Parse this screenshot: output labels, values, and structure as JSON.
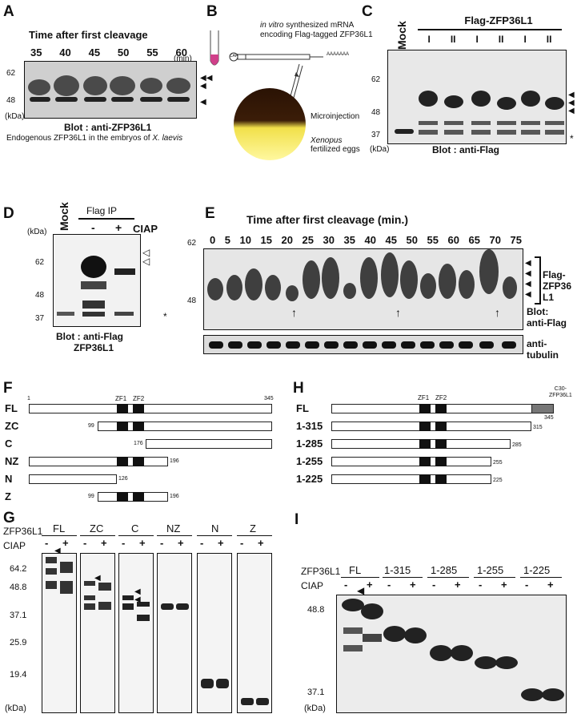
{
  "panelA": {
    "label": "A",
    "title": "Time after first cleavage",
    "times": [
      "35",
      "40",
      "45",
      "50",
      "55",
      "60"
    ],
    "unit": "(min)",
    "mw": [
      "62",
      "48"
    ],
    "kda": "(kDa)",
    "blot": "Blot : anti-ZFP36L1",
    "caption_pre": "Endogenous ZFP36L1 in the embryos of ",
    "caption_species": "X. laevis"
  },
  "panelB": {
    "label": "B",
    "mrna_italic": "in vitro",
    "mrna_rest": " synthesized mRNA",
    "mrna_line2": "encoding Flag-tagged ZFP36L1",
    "cap": "CAP",
    "polya": "AAAAAAA",
    "micro": "Microinjection",
    "eggs_italic": "Xenopus",
    "eggs_line2": "fertilized eggs"
  },
  "panelC": {
    "label": "C",
    "mock": "Mock",
    "header": "Flag-ZFP36L1",
    "lanes": [
      "I",
      "II",
      "I",
      "II",
      "I",
      "II"
    ],
    "mw": [
      "62",
      "48",
      "37"
    ],
    "kda": "(kDa)",
    "blot": "Blot : anti-Flag",
    "star": "*"
  },
  "panelD": {
    "label": "D",
    "mock": "Mock",
    "header": "Flag IP",
    "minus": "-",
    "plus": "+",
    "ciap": "CIAP",
    "kda": "(kDa)",
    "mw": [
      "62",
      "48",
      "37"
    ],
    "blot_line1": "Blot : anti-Flag",
    "blot_line2": "ZFP36L1",
    "star": "*"
  },
  "panelE": {
    "label": "E",
    "title": "Time after first cleavage (min.)",
    "times": [
      "0",
      "5",
      "10",
      "15",
      "20",
      "25",
      "30",
      "35",
      "40",
      "45",
      "50",
      "55",
      "60",
      "65",
      "70",
      "75"
    ],
    "mw": [
      "62",
      "48"
    ],
    "flag_line1": "Flag-",
    "flag_line2": "ZFP36",
    "flag_line3": "L1",
    "blot_line1": "Blot:",
    "blot_line2": "anti-Flag",
    "tub_line1": "anti-",
    "tub_line2": "tubulin"
  },
  "panelF": {
    "label": "F",
    "rows": [
      {
        "name": "FL",
        "start": "1",
        "end": "345"
      },
      {
        "name": "ZC",
        "start": "99",
        "end": ""
      },
      {
        "name": "C",
        "start": "176",
        "end": ""
      },
      {
        "name": "NZ",
        "start": "",
        "end": "196"
      },
      {
        "name": "N",
        "start": "",
        "end": "126"
      },
      {
        "name": "Z",
        "start": "99",
        "end": "196"
      }
    ],
    "zf1": "ZF1",
    "zf2": "ZF2"
  },
  "panelH": {
    "label": "H",
    "rows": [
      {
        "name": "FL",
        "end": "345"
      },
      {
        "name": "1-315",
        "end": "315"
      },
      {
        "name": "1-285",
        "end": "285"
      },
      {
        "name": "1-255",
        "end": "255"
      },
      {
        "name": "1-225",
        "end": "225"
      }
    ],
    "zf1": "ZF1",
    "zf2": "ZF2",
    "c30_line1": "C30-",
    "c30_line2": "ZFP36L1"
  },
  "panelG": {
    "label": "G",
    "row1": "ZFP36L1",
    "row2": "CIAP",
    "groups": [
      "FL",
      "ZC",
      "C",
      "NZ",
      "N",
      "Z"
    ],
    "minus": "-",
    "plus": "+",
    "mw": [
      "64.2",
      "48.8",
      "37.1",
      "25.9",
      "19.4"
    ],
    "kda": "(kDa)"
  },
  "panelI": {
    "label": "I",
    "row1": "ZFP36L1",
    "row2": "CIAP",
    "groups": [
      "FL",
      "1-315",
      "1-285",
      "1-255",
      "1-225"
    ],
    "minus": "-",
    "plus": "+",
    "mw": [
      "48.8",
      "37.1"
    ],
    "kda": "(kDa)"
  }
}
